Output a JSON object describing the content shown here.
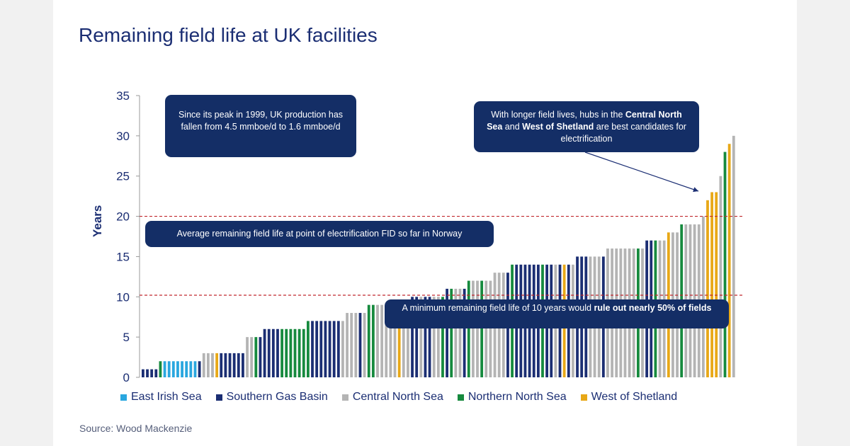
{
  "title": "Remaining field life at UK facilities",
  "source": "Source: Wood Mackenzie",
  "annotations": {
    "peak_note": "Since its peak in 1999, UK production has fallen from 4.5 mmboe/d  to 1.6 mmboe/d",
    "norway_note": "Average remaining  field life at point  of electrification FID so far in Norway",
    "hubs_note": {
      "part1": "With longer field lives, hubs in the ",
      "bold1": "Central North Sea",
      "part2": " and ",
      "bold2": "West of Shetland",
      "part3": " are best candidates  for electrification"
    },
    "minimum_note": {
      "part1": "A minimum  remaining field life of 10 years would ",
      "bold1": "rule out nearly 50% of fields"
    }
  },
  "colors": {
    "East Irish Sea": "#2aa7df",
    "Southern Gas Basin": "#1b2e73",
    "Central North Sea": "#b4b4b4",
    "Northern North Sea": "#168a3e",
    "West of Shetland": "#e8a817",
    "reference_line": "#c0282d",
    "note_bg": "#142e66"
  },
  "chart_data": {
    "type": "bar",
    "ylabel": "Years",
    "xlabel": "",
    "ylim": [
      0,
      35
    ],
    "yticks": [
      0,
      5,
      10,
      15,
      20,
      25,
      30,
      35
    ],
    "reference_lines": [
      20,
      10.2
    ],
    "legend": [
      "East Irish Sea",
      "Southern Gas Basin",
      "Central North Sea",
      "Northern North Sea",
      "West of Shetland"
    ],
    "legend_placement": "bottom",
    "bars": [
      {
        "region": "Southern Gas Basin",
        "value": 1
      },
      {
        "region": "Southern Gas Basin",
        "value": 1
      },
      {
        "region": "Southern Gas Basin",
        "value": 1
      },
      {
        "region": "Southern Gas Basin",
        "value": 1
      },
      {
        "region": "Northern North Sea",
        "value": 2
      },
      {
        "region": "East Irish Sea",
        "value": 2
      },
      {
        "region": "East Irish Sea",
        "value": 2
      },
      {
        "region": "East Irish Sea",
        "value": 2
      },
      {
        "region": "East Irish Sea",
        "value": 2
      },
      {
        "region": "East Irish Sea",
        "value": 2
      },
      {
        "region": "East Irish Sea",
        "value": 2
      },
      {
        "region": "East Irish Sea",
        "value": 2
      },
      {
        "region": "East Irish Sea",
        "value": 2
      },
      {
        "region": "Southern Gas Basin",
        "value": 2
      },
      {
        "region": "Central North Sea",
        "value": 3
      },
      {
        "region": "Central North Sea",
        "value": 3
      },
      {
        "region": "Central North Sea",
        "value": 3
      },
      {
        "region": "West of Shetland",
        "value": 3
      },
      {
        "region": "Southern Gas Basin",
        "value": 3
      },
      {
        "region": "Southern Gas Basin",
        "value": 3
      },
      {
        "region": "Southern Gas Basin",
        "value": 3
      },
      {
        "region": "Southern Gas Basin",
        "value": 3
      },
      {
        "region": "Southern Gas Basin",
        "value": 3
      },
      {
        "region": "Southern Gas Basin",
        "value": 3
      },
      {
        "region": "Central North Sea",
        "value": 5
      },
      {
        "region": "Central North Sea",
        "value": 5
      },
      {
        "region": "Northern North Sea",
        "value": 5
      },
      {
        "region": "Southern Gas Basin",
        "value": 5
      },
      {
        "region": "Southern Gas Basin",
        "value": 6
      },
      {
        "region": "Southern Gas Basin",
        "value": 6
      },
      {
        "region": "Southern Gas Basin",
        "value": 6
      },
      {
        "region": "Southern Gas Basin",
        "value": 6
      },
      {
        "region": "Northern North Sea",
        "value": 6
      },
      {
        "region": "Northern North Sea",
        "value": 6
      },
      {
        "region": "Northern North Sea",
        "value": 6
      },
      {
        "region": "Northern North Sea",
        "value": 6
      },
      {
        "region": "Northern North Sea",
        "value": 6
      },
      {
        "region": "Northern North Sea",
        "value": 6
      },
      {
        "region": "Northern North Sea",
        "value": 7
      },
      {
        "region": "Southern Gas Basin",
        "value": 7
      },
      {
        "region": "Southern Gas Basin",
        "value": 7
      },
      {
        "region": "Southern Gas Basin",
        "value": 7
      },
      {
        "region": "Southern Gas Basin",
        "value": 7
      },
      {
        "region": "Southern Gas Basin",
        "value": 7
      },
      {
        "region": "Southern Gas Basin",
        "value": 7
      },
      {
        "region": "Southern Gas Basin",
        "value": 7
      },
      {
        "region": "Central North Sea",
        "value": 7
      },
      {
        "region": "Central North Sea",
        "value": 8
      },
      {
        "region": "Central North Sea",
        "value": 8
      },
      {
        "region": "Central North Sea",
        "value": 8
      },
      {
        "region": "Southern Gas Basin",
        "value": 8
      },
      {
        "region": "Central North Sea",
        "value": 8
      },
      {
        "region": "Northern North Sea",
        "value": 9
      },
      {
        "region": "Northern North Sea",
        "value": 9
      },
      {
        "region": "Central North Sea",
        "value": 9
      },
      {
        "region": "Central North Sea",
        "value": 9
      },
      {
        "region": "Central North Sea",
        "value": 9
      },
      {
        "region": "Central North Sea",
        "value": 9
      },
      {
        "region": "Central North Sea",
        "value": 9
      },
      {
        "region": "West of Shetland",
        "value": 9
      },
      {
        "region": "Central North Sea",
        "value": 9
      },
      {
        "region": "Central North Sea",
        "value": 9
      },
      {
        "region": "Southern Gas Basin",
        "value": 10
      },
      {
        "region": "Southern Gas Basin",
        "value": 10
      },
      {
        "region": "Central North Sea",
        "value": 10
      },
      {
        "region": "Southern Gas Basin",
        "value": 10
      },
      {
        "region": "Southern Gas Basin",
        "value": 10
      },
      {
        "region": "Central North Sea",
        "value": 10
      },
      {
        "region": "Central North Sea",
        "value": 10
      },
      {
        "region": "Northern North Sea",
        "value": 10
      },
      {
        "region": "Southern Gas Basin",
        "value": 11
      },
      {
        "region": "Northern North Sea",
        "value": 11
      },
      {
        "region": "Central North Sea",
        "value": 11
      },
      {
        "region": "Central North Sea",
        "value": 11
      },
      {
        "region": "Southern Gas Basin",
        "value": 11
      },
      {
        "region": "Northern North Sea",
        "value": 12
      },
      {
        "region": "Central North Sea",
        "value": 12
      },
      {
        "region": "Central North Sea",
        "value": 12
      },
      {
        "region": "Northern North Sea",
        "value": 12
      },
      {
        "region": "Central North Sea",
        "value": 12
      },
      {
        "region": "Central North Sea",
        "value": 12
      },
      {
        "region": "Central North Sea",
        "value": 13
      },
      {
        "region": "Central North Sea",
        "value": 13
      },
      {
        "region": "Central North Sea",
        "value": 13
      },
      {
        "region": "Southern Gas Basin",
        "value": 13
      },
      {
        "region": "Northern North Sea",
        "value": 14
      },
      {
        "region": "Southern Gas Basin",
        "value": 14
      },
      {
        "region": "Southern Gas Basin",
        "value": 14
      },
      {
        "region": "Southern Gas Basin",
        "value": 14
      },
      {
        "region": "Southern Gas Basin",
        "value": 14
      },
      {
        "region": "Southern Gas Basin",
        "value": 14
      },
      {
        "region": "Southern Gas Basin",
        "value": 14
      },
      {
        "region": "Northern North Sea",
        "value": 14
      },
      {
        "region": "Southern Gas Basin",
        "value": 14
      },
      {
        "region": "Southern Gas Basin",
        "value": 14
      },
      {
        "region": "Central North Sea",
        "value": 14
      },
      {
        "region": "Southern Gas Basin",
        "value": 14
      },
      {
        "region": "West of Shetland",
        "value": 14
      },
      {
        "region": "Southern Gas Basin",
        "value": 14
      },
      {
        "region": "Central North Sea",
        "value": 14
      },
      {
        "region": "Southern Gas Basin",
        "value": 15
      },
      {
        "region": "Southern Gas Basin",
        "value": 15
      },
      {
        "region": "Southern Gas Basin",
        "value": 15
      },
      {
        "region": "Central North Sea",
        "value": 15
      },
      {
        "region": "Central North Sea",
        "value": 15
      },
      {
        "region": "Central North Sea",
        "value": 15
      },
      {
        "region": "Southern Gas Basin",
        "value": 15
      },
      {
        "region": "Central North Sea",
        "value": 16
      },
      {
        "region": "Central North Sea",
        "value": 16
      },
      {
        "region": "Central North Sea",
        "value": 16
      },
      {
        "region": "Central North Sea",
        "value": 16
      },
      {
        "region": "Central North Sea",
        "value": 16
      },
      {
        "region": "Central North Sea",
        "value": 16
      },
      {
        "region": "Central North Sea",
        "value": 16
      },
      {
        "region": "Northern North Sea",
        "value": 16
      },
      {
        "region": "Central North Sea",
        "value": 16
      },
      {
        "region": "Southern Gas Basin",
        "value": 17
      },
      {
        "region": "Southern Gas Basin",
        "value": 17
      },
      {
        "region": "Northern North Sea",
        "value": 17
      },
      {
        "region": "Central North Sea",
        "value": 17
      },
      {
        "region": "Central North Sea",
        "value": 17
      },
      {
        "region": "West of Shetland",
        "value": 18
      },
      {
        "region": "Central North Sea",
        "value": 18
      },
      {
        "region": "Central North Sea",
        "value": 18
      },
      {
        "region": "Northern North Sea",
        "value": 19
      },
      {
        "region": "Central North Sea",
        "value": 19
      },
      {
        "region": "Central North Sea",
        "value": 19
      },
      {
        "region": "Central North Sea",
        "value": 19
      },
      {
        "region": "Central North Sea",
        "value": 19
      },
      {
        "region": "Central North Sea",
        "value": 20
      },
      {
        "region": "West of Shetland",
        "value": 22
      },
      {
        "region": "West of Shetland",
        "value": 23
      },
      {
        "region": "West of Shetland",
        "value": 23
      },
      {
        "region": "Central North Sea",
        "value": 25
      },
      {
        "region": "Northern North Sea",
        "value": 28
      },
      {
        "region": "West of Shetland",
        "value": 29
      },
      {
        "region": "Central North Sea",
        "value": 30
      }
    ]
  }
}
